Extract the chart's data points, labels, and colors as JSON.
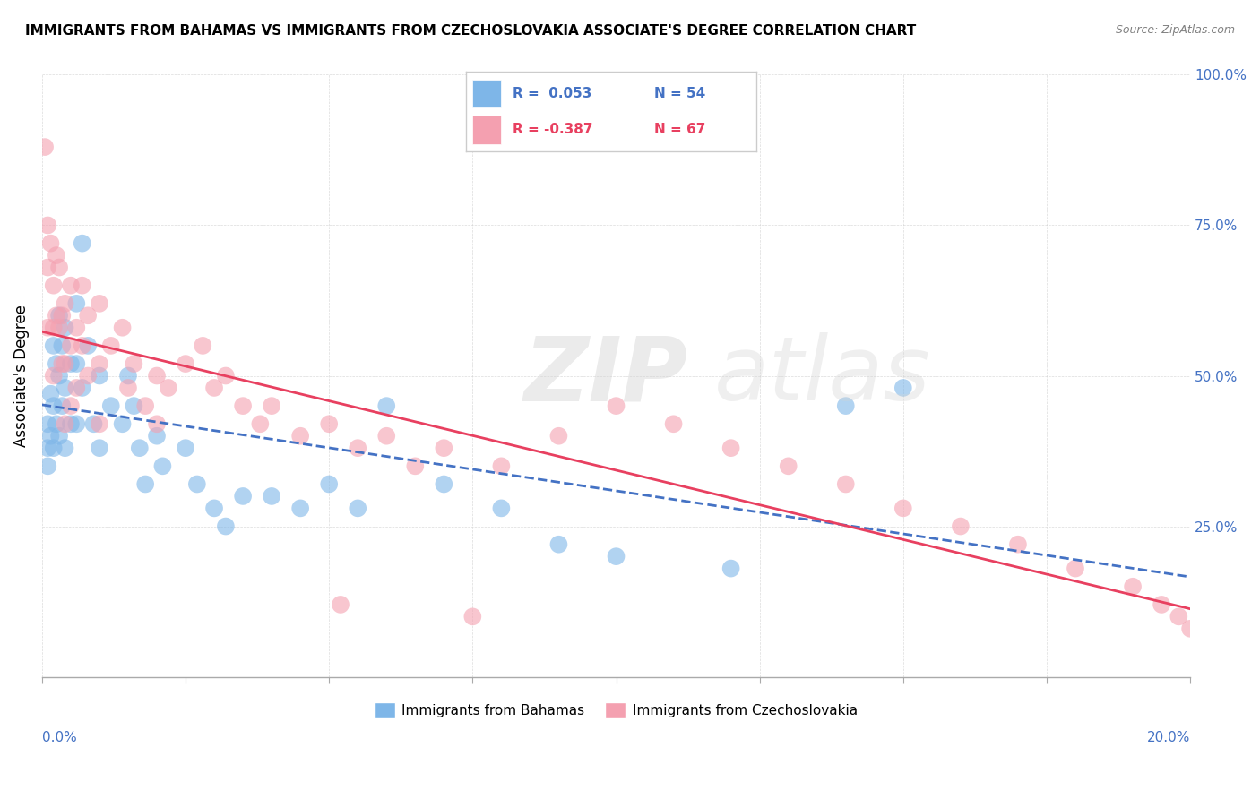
{
  "title": "IMMIGRANTS FROM BAHAMAS VS IMMIGRANTS FROM CZECHOSLOVAKIA ASSOCIATE'S DEGREE CORRELATION CHART",
  "source": "Source: ZipAtlas.com",
  "ylabel": "Associate's Degree",
  "legend_blue_r": "R =  0.053",
  "legend_blue_n": "N = 54",
  "legend_pink_r": "R = -0.387",
  "legend_pink_n": "N = 67",
  "legend_blue_label": "Immigrants from Bahamas",
  "legend_pink_label": "Immigrants from Czechoslovakia",
  "blue_color": "#7EB6E8",
  "pink_color": "#F4A0B0",
  "blue_line_color": "#4472C4",
  "pink_line_color": "#E84060",
  "axis_label_color": "#4472C4",
  "xlim": [
    0.0,
    20.0
  ],
  "ylim": [
    0.0,
    100.0
  ],
  "blue_x": [
    0.1,
    0.1,
    0.1,
    0.15,
    0.15,
    0.2,
    0.2,
    0.2,
    0.25,
    0.25,
    0.3,
    0.3,
    0.3,
    0.35,
    0.35,
    0.4,
    0.4,
    0.4,
    0.5,
    0.5,
    0.6,
    0.6,
    0.6,
    0.7,
    0.7,
    0.8,
    0.9,
    1.0,
    1.0,
    1.2,
    1.4,
    1.5,
    1.6,
    1.7,
    1.8,
    2.0,
    2.1,
    2.5,
    2.7,
    3.0,
    3.2,
    3.5,
    4.0,
    4.5,
    5.0,
    5.5,
    6.0,
    7.0,
    8.0,
    9.0,
    10.0,
    12.0,
    14.0,
    15.0
  ],
  "blue_y": [
    42,
    38,
    35,
    47,
    40,
    55,
    45,
    38,
    52,
    42,
    60,
    50,
    40,
    55,
    45,
    58,
    48,
    38,
    52,
    42,
    62,
    52,
    42,
    72,
    48,
    55,
    42,
    50,
    38,
    45,
    42,
    50,
    45,
    38,
    32,
    40,
    35,
    38,
    32,
    28,
    25,
    30,
    30,
    28,
    32,
    28,
    45,
    32,
    28,
    22,
    20,
    18,
    45,
    48
  ],
  "pink_x": [
    0.05,
    0.1,
    0.1,
    0.1,
    0.15,
    0.2,
    0.2,
    0.2,
    0.25,
    0.25,
    0.3,
    0.3,
    0.35,
    0.35,
    0.4,
    0.4,
    0.4,
    0.5,
    0.5,
    0.5,
    0.6,
    0.6,
    0.7,
    0.7,
    0.8,
    0.8,
    1.0,
    1.0,
    1.0,
    1.2,
    1.4,
    1.5,
    1.6,
    1.8,
    2.0,
    2.0,
    2.2,
    2.5,
    2.8,
    3.0,
    3.2,
    3.5,
    3.8,
    4.0,
    4.5,
    5.0,
    5.5,
    6.0,
    6.5,
    7.0,
    8.0,
    9.0,
    10.0,
    11.0,
    12.0,
    13.0,
    14.0,
    15.0,
    16.0,
    17.0,
    18.0,
    19.0,
    19.5,
    19.8,
    20.0,
    7.5,
    5.2
  ],
  "pink_y": [
    88,
    75,
    68,
    58,
    72,
    65,
    58,
    50,
    70,
    60,
    68,
    58,
    60,
    52,
    62,
    52,
    42,
    65,
    55,
    45,
    58,
    48,
    65,
    55,
    60,
    50,
    62,
    52,
    42,
    55,
    58,
    48,
    52,
    45,
    50,
    42,
    48,
    52,
    55,
    48,
    50,
    45,
    42,
    45,
    40,
    42,
    38,
    40,
    35,
    38,
    35,
    40,
    45,
    42,
    38,
    35,
    32,
    28,
    25,
    22,
    18,
    15,
    12,
    10,
    8,
    10,
    12
  ]
}
